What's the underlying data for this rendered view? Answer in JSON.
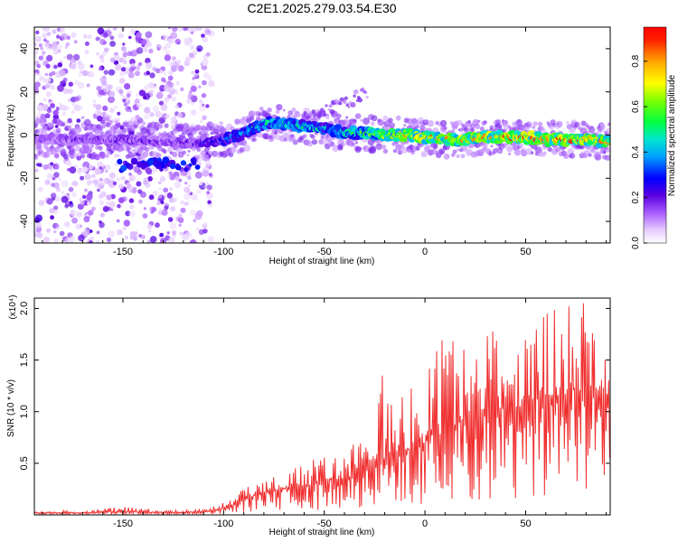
{
  "figure_title": "C2E1.2025.279.03.54.E30",
  "colormap": [
    "#ffffff",
    "#f0e0ff",
    "#c9a6ff",
    "#8a4dff",
    "#4b0bd6",
    "#0000ff",
    "#00b4ff",
    "#00e5c0",
    "#00ff00",
    "#ffff00",
    "#ffa500",
    "#ff0000"
  ],
  "chart_data": [
    {
      "type": "heatmap",
      "title": "C2E1.2025.279.03.54.E30",
      "xlabel": "Height of straight line (km)",
      "ylabel": "Frequency (Hz)",
      "xlim": [
        -194,
        92
      ],
      "ylim": [
        -50,
        50
      ],
      "xticks": [
        -150,
        -100,
        -50,
        0,
        50
      ],
      "yticks": [
        -40,
        -20,
        0,
        20,
        40
      ],
      "colorbar": {
        "label": "Normalized spectral amplitude",
        "range": [
          0,
          0.95
        ],
        "ticks": [
          0.0,
          0.2,
          0.4,
          0.6,
          0.8
        ]
      },
      "ridge": {
        "description": "Doppler ridge center frequency vs height",
        "x": [
          -192,
          -170,
          -150,
          -130,
          -115,
          -105,
          -95,
          -85,
          -78,
          -70,
          -60,
          -50,
          -40,
          -30,
          -20,
          -10,
          0,
          10,
          20,
          30,
          40,
          50,
          60,
          70,
          80,
          90
        ],
        "y": [
          -2,
          -2,
          -2,
          -3,
          -4,
          -3,
          -1,
          3,
          6,
          5,
          4,
          3,
          1,
          1,
          0,
          0,
          -1,
          -2,
          -2,
          -1,
          -1,
          -1,
          -2,
          -2,
          -2,
          -3
        ],
        "intensity": [
          0.18,
          0.2,
          0.22,
          0.2,
          0.22,
          0.3,
          0.38,
          0.45,
          0.5,
          0.5,
          0.52,
          0.45,
          0.5,
          0.6,
          0.72,
          0.8,
          0.85,
          0.78,
          0.8,
          0.85,
          0.9,
          0.92,
          0.9,
          0.88,
          0.85,
          0.8
        ]
      }
    },
    {
      "type": "line",
      "xlabel": "Height of straight line (km)",
      "ylabel": "SNR (10 * v/v)",
      "y_multiplier": "(x10⁴)",
      "xlim": [
        -194,
        92
      ],
      "ylim": [
        0,
        2.1
      ],
      "xticks": [
        -150,
        -100,
        -50,
        0,
        50
      ],
      "yticks": [
        0.5,
        1.0,
        1.5,
        2.0
      ],
      "series": [
        {
          "name": "SNR",
          "color": "#f03030",
          "x": [
            -194,
            -170,
            -150,
            -125,
            -110,
            -100,
            -90,
            -80,
            -70,
            -60,
            -50,
            -40,
            -30,
            -20,
            -10,
            0,
            10,
            20,
            30,
            40,
            50,
            60,
            70,
            80,
            92
          ],
          "y": [
            0.02,
            0.02,
            0.03,
            0.02,
            0.03,
            0.06,
            0.15,
            0.22,
            0.25,
            0.28,
            0.32,
            0.35,
            0.42,
            0.55,
            0.6,
            0.7,
            0.8,
            0.95,
            1.0,
            1.05,
            1.05,
            1.1,
            1.15,
            1.2,
            1.1
          ],
          "peak_max": [
            0.03,
            0.05,
            0.08,
            0.05,
            0.06,
            0.12,
            0.25,
            0.35,
            0.42,
            0.5,
            0.6,
            0.55,
            0.85,
            1.45,
            1.35,
            1.4,
            1.75,
            1.6,
            1.9,
            1.7,
            1.85,
            2.0,
            2.05,
            2.05,
            2.1
          ]
        }
      ]
    }
  ]
}
